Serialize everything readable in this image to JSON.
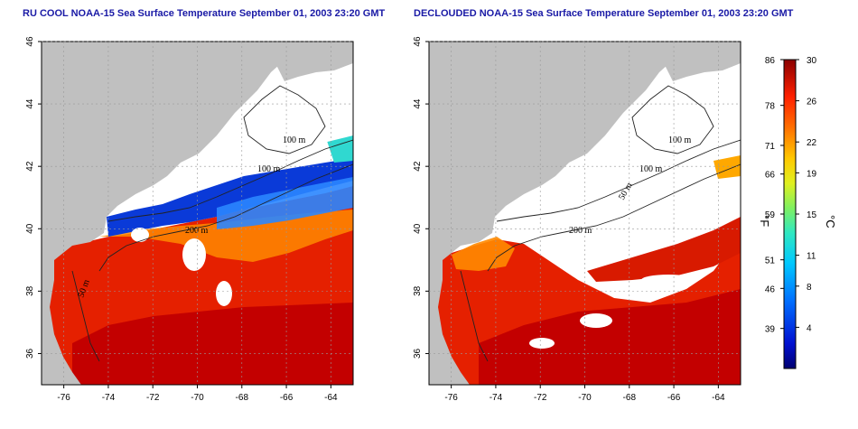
{
  "titles": {
    "left": "RU COOL NOAA-15 Sea Surface Temperature September 01, 2003 23:20 GMT",
    "right": "DECLOUDED NOAA-15 Sea Surface Temperature September 01, 2003 23:20 GMT"
  },
  "axes": {
    "x_ticks": [
      "-76",
      "-74",
      "-72",
      "-70",
      "-68",
      "-66",
      "-64"
    ],
    "y_ticks": [
      "36",
      "38",
      "40",
      "42",
      "44",
      "46"
    ],
    "lon_range": [
      -77,
      -63
    ],
    "lat_range": [
      35,
      46
    ]
  },
  "contour_labels": {
    "m100a": "100 m",
    "m100b": "100 m",
    "m50": "50 m",
    "m200": "200 m"
  },
  "colorbar": {
    "fahrenheit_label": "°F",
    "celsius_label": "°C",
    "fahrenheit_ticks": [
      "86",
      "78",
      "71",
      "66",
      "59",
      "51",
      "46",
      "39"
    ],
    "celsius_ticks": [
      "30",
      "26",
      "22",
      "19",
      "15",
      "11",
      "8",
      "4"
    ],
    "colors": [
      "#000070",
      "#0010d0",
      "#0060ff",
      "#00b0ff",
      "#30e0d0",
      "#70f070",
      "#d0f020",
      "#ffd000",
      "#ff8000",
      "#ff3000",
      "#d80000",
      "#8a0000"
    ]
  },
  "colors": {
    "land": "#c0c0c0",
    "cloud": "#ffffff",
    "warm": "#e52000",
    "hot": "#c00000"
  }
}
